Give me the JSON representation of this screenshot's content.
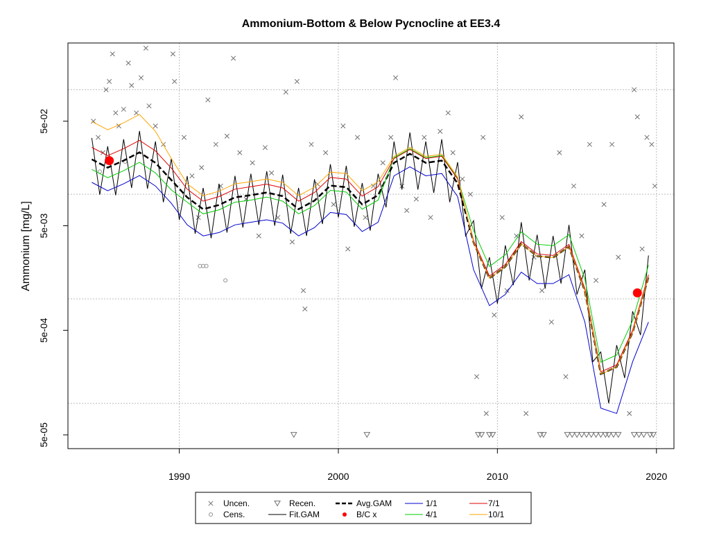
{
  "chart_data": {
    "type": "line",
    "title": "Ammonium-Bottom & Below Pycnocline at EE3.4",
    "y_label": "Ammonium [mg/L]",
    "xlim": [
      1983,
      2021.1
    ],
    "xticks": [
      1990,
      2000,
      2010,
      2020
    ],
    "ylim": [
      3.69e-05,
      0.28
    ],
    "log_y": true,
    "yticks": [
      {
        "value": 0.05,
        "label": "5e-02"
      },
      {
        "value": 0.005,
        "label": "5e-03"
      },
      {
        "value": 0.0005,
        "label": "5e-04"
      },
      {
        "value": 5e-05,
        "label": "5e-05"
      }
    ],
    "ygrid": [
      0.1,
      0.01,
      0.001,
      0.0001
    ],
    "grid": true,
    "series": [
      {
        "name": "Uncen.",
        "style": "points",
        "marker": "x",
        "color": "#707070",
        "x": [
          1984.6,
          1984.9,
          1985.2,
          1985.4,
          1985.6,
          1985.8,
          1986.0,
          1986.2,
          1986.5,
          1986.8,
          1987.0,
          1987.3,
          1987.6,
          1987.9,
          1988.1,
          1988.5,
          1989.0,
          1989.6,
          1989.7,
          1990.3,
          1990.8,
          1991.2,
          1991.4,
          1991.8,
          1992.3,
          1992.6,
          1993.0,
          1993.4,
          1993.8,
          1994.2,
          1994.6,
          1995.0,
          1995.4,
          1995.8,
          1996.2,
          1996.7,
          1997.1,
          1997.4,
          1997.8,
          1997.9,
          1998.3,
          1998.7,
          1999.2,
          1999.7,
          2000.3,
          2000.6,
          2001.2,
          2001.7,
          2002.2,
          2002.8,
          2003.3,
          2003.6,
          2004.0,
          2004.3,
          2004.9,
          2005.4,
          2005.8,
          2006.4,
          2006.9,
          2007.2,
          2007.8,
          2008.3,
          2008.7,
          2009.1,
          2009.3,
          2009.8,
          2010.3,
          2010.6,
          2011.2,
          2011.5,
          2011.8,
          2012.3,
          2012.8,
          2013.4,
          2013.9,
          2014.3,
          2014.8,
          2015.3,
          2015.8,
          2016.2,
          2016.7,
          2017.2,
          2017.6,
          2018.3,
          2018.6,
          2018.8,
          2019.1,
          2019.4,
          2019.7,
          2019.9
        ],
        "values": [
          0.05,
          0.035,
          0.025,
          0.1,
          0.12,
          0.22,
          0.06,
          0.045,
          0.065,
          0.18,
          0.11,
          0.06,
          0.13,
          0.25,
          0.07,
          0.045,
          0.03,
          0.22,
          0.12,
          0.035,
          0.015,
          0.006,
          0.018,
          0.08,
          0.03,
          0.012,
          0.036,
          0.2,
          0.025,
          0.009,
          0.02,
          0.004,
          0.028,
          0.016,
          0.006,
          0.095,
          0.0035,
          0.12,
          0.0012,
          0.0008,
          0.03,
          0.0125,
          0.025,
          0.008,
          0.045,
          0.003,
          0.035,
          0.006,
          0.012,
          0.02,
          0.035,
          0.13,
          0.012,
          0.007,
          0.009,
          0.035,
          0.006,
          0.04,
          0.06,
          0.025,
          0.014,
          0.01,
          0.00018,
          0.035,
          8e-05,
          0.0007,
          0.006,
          0.0012,
          0.004,
          0.055,
          8e-05,
          0.0025,
          0.0012,
          0.0006,
          0.025,
          0.00018,
          0.012,
          0.004,
          0.03,
          0.0015,
          0.008,
          0.03,
          0.0025,
          8e-05,
          0.1,
          0.055,
          0.003,
          0.035,
          0.03,
          0.012
        ]
      },
      {
        "name": "Cens.",
        "style": "points",
        "marker": "circle",
        "color": "#909090",
        "x": [
          1991.3,
          1991.5,
          1991.7,
          1992.9,
          1985.0,
          1986.6
        ],
        "values": [
          0.00206,
          0.00206,
          0.00206,
          0.0015,
          0.0165,
          0.0205
        ]
      },
      {
        "name": "Recen.",
        "style": "points",
        "marker": "triangle",
        "color": "#707070",
        "x": [
          1997.2,
          2001.8,
          2008.8,
          2009.0,
          2009.5,
          2009.7,
          2012.7,
          2012.9,
          2014.4,
          2014.7,
          2015.0,
          2015.3,
          2015.6,
          2015.9,
          2016.2,
          2016.5,
          2016.8,
          2017.0,
          2017.3,
          2017.6,
          2018.6,
          2018.9,
          2019.2,
          2019.6,
          2019.8
        ],
        "values": [
          5e-05,
          5e-05,
          5e-05,
          5e-05,
          5e-05,
          5e-05,
          5e-05,
          5e-05,
          5e-05,
          5e-05,
          5e-05,
          5e-05,
          5e-05,
          5e-05,
          5e-05,
          5e-05,
          5e-05,
          5e-05,
          5e-05,
          5e-05,
          5e-05,
          5e-05,
          5e-05,
          5e-05,
          5e-05
        ]
      },
      {
        "name": "Fit.GAM",
        "style": "line",
        "color": "#000000",
        "width": 1,
        "x": [
          1984.5,
          1985,
          1985.5,
          1986,
          1986.5,
          1987,
          1987.5,
          1988,
          1988.5,
          1989,
          1989.5,
          1990,
          1990.5,
          1991,
          1991.5,
          1992,
          1992.5,
          1993,
          1993.5,
          1994,
          1994.5,
          1995,
          1995.5,
          1996,
          1996.5,
          1997,
          1997.5,
          1998,
          1998.5,
          1999,
          1999.5,
          2000,
          2000.5,
          2001,
          2001.5,
          2002,
          2002.5,
          2003,
          2003.5,
          2004,
          2004.5,
          2005,
          2005.5,
          2006,
          2006.5,
          2007,
          2007.5,
          2008,
          2008.5,
          2009,
          2009.5,
          2010,
          2010.5,
          2011,
          2011.5,
          2012,
          2012.5,
          2013,
          2013.5,
          2014,
          2014.5,
          2015,
          2015.5,
          2016,
          2016.5,
          2017,
          2017.5,
          2018,
          2018.5,
          2019,
          2019.5
        ],
        "values": [
          0.0346,
          0.0099,
          0.0288,
          0.0098,
          0.0336,
          0.0115,
          0.0403,
          0.0113,
          0.032,
          0.0084,
          0.0219,
          0.0057,
          0.01496,
          0.0042,
          0.0115,
          0.0038,
          0.0126,
          0.0043,
          0.015,
          0.0048,
          0.0157,
          0.0051,
          0.0166,
          0.005,
          0.0154,
          0.0042,
          0.0115,
          0.004,
          0.0139,
          0.0052,
          0.0194,
          0.006,
          0.0187,
          0.0049,
          0.0128,
          0.0045,
          0.0157,
          0.0075,
          0.032,
          0.0111,
          0.039,
          0.0111,
          0.032,
          0.0103,
          0.0336,
          0.0084,
          0.0203,
          0.004,
          0.0056,
          0.00125,
          0.0025,
          0.0009,
          0.00325,
          0.00135,
          0.0054,
          0.0015,
          0.0041,
          0.00125,
          0.004,
          0.0014,
          0.0051,
          0.0011,
          0.0019,
          0.00025,
          0.00031,
          0.0001,
          0.00036,
          0.000175,
          0.00076,
          0.00045,
          0.0026
        ]
      },
      {
        "name": "Avg.GAM",
        "style": "line",
        "dash": true,
        "color": "#000000",
        "width": 2.5,
        "x": [
          1984.5,
          1985.5,
          1986.5,
          1987.5,
          1988.5,
          1989.5,
          1990.5,
          1991.5,
          1992.5,
          1993.5,
          1994.5,
          1995.5,
          1996.5,
          1997.5,
          1998.5,
          1999.5,
          2000.5,
          2001.5,
          2002.5,
          2003.5,
          2004.5,
          2005.5,
          2006.5,
          2007.5,
          2008.5,
          2009.5,
          2010.5,
          2011.5,
          2012.5,
          2013.5,
          2014.5,
          2015.5,
          2016.5,
          2017.5,
          2018.5,
          2019.5
        ],
        "values": [
          0.0216,
          0.018,
          0.021,
          0.0252,
          0.02,
          0.0137,
          0.00935,
          0.0072,
          0.0079,
          0.00935,
          0.0098,
          0.0104,
          0.0096,
          0.0072,
          0.0087,
          0.0121,
          0.0117,
          0.008,
          0.0098,
          0.02,
          0.0244,
          0.02,
          0.021,
          0.0127,
          0.00347,
          0.00157,
          0.00203,
          0.00336,
          0.00256,
          0.00248,
          0.00316,
          0.00119,
          0.000191,
          0.000223,
          0.000477,
          0.00162
        ]
      },
      {
        "name": "B/C x",
        "style": "points",
        "marker": "dot",
        "color": "#ff0000",
        "x": [
          1985.6,
          2018.8
        ],
        "values": [
          0.021,
          0.00114
        ]
      },
      {
        "name": "1/1",
        "style": "line",
        "color": "#0000cd",
        "width": 1,
        "x": [
          1984.5,
          1985.5,
          1986.5,
          1987.5,
          1988.5,
          1989.5,
          1990.5,
          1991.5,
          1992.5,
          1993.5,
          1994.5,
          1995.5,
          1996.5,
          1997.5,
          1998.5,
          1999.5,
          2000.5,
          2001.5,
          2002.5,
          2003.5,
          2004.5,
          2005.5,
          2006.5,
          2007.5,
          2008.5,
          2009.5,
          2010.5,
          2011.5,
          2012.5,
          2013.5,
          2014.5,
          2015.5,
          2016.5,
          2017.5,
          2018.5,
          2019.5
        ],
        "values": [
          0.013,
          0.0108,
          0.0126,
          0.0151,
          0.012,
          0.0082,
          0.0051,
          0.004,
          0.0043,
          0.0051,
          0.0054,
          0.0057,
          0.0053,
          0.004,
          0.0048,
          0.0067,
          0.0064,
          0.0044,
          0.0054,
          0.015,
          0.0183,
          0.015,
          0.0158,
          0.0095,
          0.0019,
          0.00086,
          0.0011,
          0.0018,
          0.0014,
          0.0014,
          0.0017,
          0.0006,
          9e-05,
          8e-05,
          0.00025,
          0.0006
        ]
      },
      {
        "name": "4/1",
        "style": "line",
        "color": "#00cd00",
        "width": 1,
        "x": [
          1984.5,
          1985.5,
          1986.5,
          1987.5,
          1988.5,
          1989.5,
          1990.5,
          1991.5,
          1992.5,
          1993.5,
          1994.5,
          1995.5,
          1996.5,
          1997.5,
          1998.5,
          1999.5,
          2000.5,
          2001.5,
          2002.5,
          2003.5,
          2004.5,
          2005.5,
          2006.5,
          2007.5,
          2008.5,
          2009.5,
          2010.5,
          2011.5,
          2012.5,
          2013.5,
          2014.5,
          2015.5,
          2016.5,
          2017.5,
          2018.5,
          2019.5
        ],
        "values": [
          0.0173,
          0.0144,
          0.0168,
          0.0202,
          0.016,
          0.011,
          0.0084,
          0.0065,
          0.0071,
          0.0084,
          0.0088,
          0.0094,
          0.0086,
          0.0065,
          0.0078,
          0.0109,
          0.0105,
          0.0072,
          0.0088,
          0.0224,
          0.0273,
          0.0224,
          0.0235,
          0.0142,
          0.0045,
          0.00204,
          0.00264,
          0.00437,
          0.00333,
          0.00322,
          0.00411,
          0.00155,
          0.000248,
          0.00029,
          0.00062,
          0.0021
        ]
      },
      {
        "name": "7/1",
        "style": "line",
        "color": "#e00000",
        "width": 1,
        "x": [
          1984.5,
          1985.5,
          1986.5,
          1987.5,
          1988.5,
          1989.5,
          1990.5,
          1991.5,
          1992.5,
          1993.5,
          1994.5,
          1995.5,
          1996.5,
          1997.5,
          1998.5,
          1999.5,
          2000.5,
          2001.5,
          2002.5,
          2003.5,
          2004.5,
          2005.5,
          2006.5,
          2007.5,
          2008.5,
          2009.5,
          2010.5,
          2011.5,
          2012.5,
          2013.5,
          2014.5,
          2015.5,
          2016.5,
          2017.5,
          2018.5,
          2019.5
        ],
        "values": [
          0.0281,
          0.0234,
          0.0273,
          0.0328,
          0.026,
          0.0178,
          0.0112,
          0.0086,
          0.0095,
          0.0112,
          0.0118,
          0.0125,
          0.0115,
          0.0086,
          0.0104,
          0.0145,
          0.014,
          0.0096,
          0.0118,
          0.022,
          0.0268,
          0.022,
          0.0231,
          0.014,
          0.0036,
          0.00165,
          0.00213,
          0.00353,
          0.00269,
          0.0026,
          0.00332,
          0.00125,
          0.0002,
          0.000234,
          0.0005,
          0.0017
        ]
      },
      {
        "name": "10/1",
        "style": "line",
        "color": "#ffa500",
        "width": 1,
        "x": [
          1984.5,
          1985.5,
          1986.5,
          1987.5,
          1988.5,
          1989.5,
          1990.5,
          1991.5,
          1992.5,
          1993.5,
          1994.5,
          1995.5,
          1996.5,
          1997.5,
          1998.5,
          1999.5,
          2000.5,
          2001.5,
          2002.5,
          2003.5,
          2004.5,
          2005.5,
          2006.5,
          2007.5,
          2008.5,
          2009.5,
          2010.5,
          2011.5,
          2012.5,
          2013.5,
          2014.5,
          2015.5,
          2016.5,
          2017.5,
          2018.5,
          2019.5
        ],
        "values": [
          0.0497,
          0.0414,
          0.0483,
          0.058,
          0.04,
          0.022,
          0.0126,
          0.0097,
          0.0107,
          0.0126,
          0.0132,
          0.014,
          0.013,
          0.0097,
          0.0117,
          0.0163,
          0.0158,
          0.0108,
          0.0132,
          0.023,
          0.0281,
          0.023,
          0.0242,
          0.0146,
          0.00347,
          0.00157,
          0.00203,
          0.00336,
          0.00256,
          0.00248,
          0.00316,
          0.00119,
          0.000191,
          0.000223,
          0.000477,
          0.00162
        ]
      }
    ]
  }
}
